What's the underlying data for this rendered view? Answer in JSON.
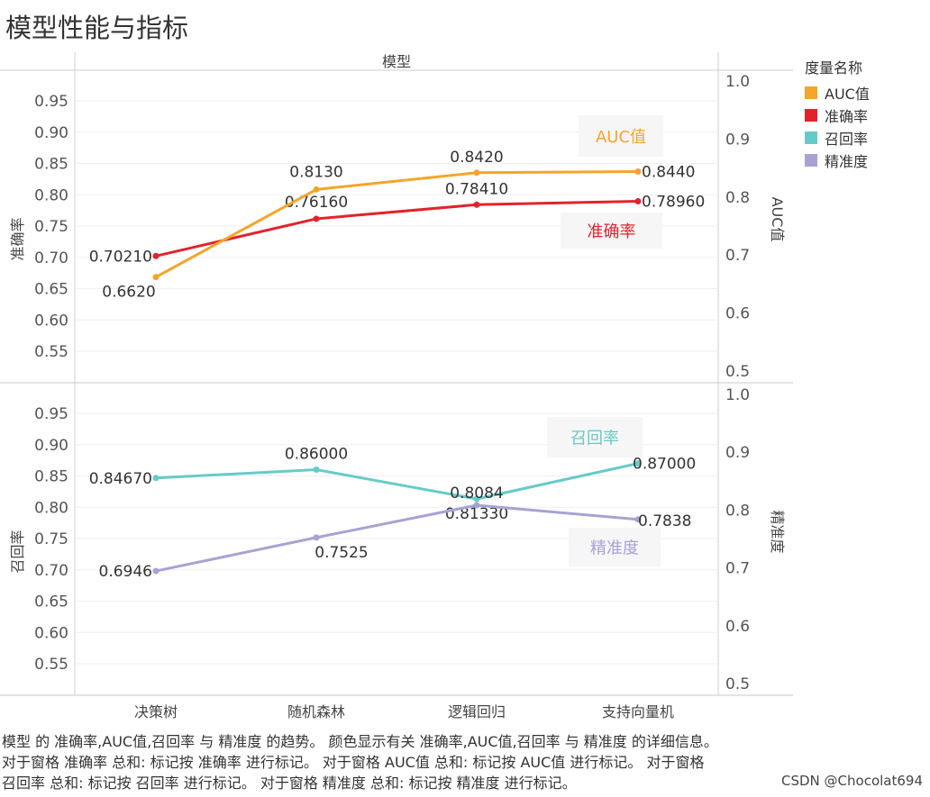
{
  "title": "模型性能与指标",
  "header_label": "模型",
  "legend": {
    "title": "度量名称",
    "items": [
      {
        "name": "AUC值",
        "color": "#f4a52a"
      },
      {
        "name": "准确率",
        "color": "#e2232c"
      },
      {
        "name": "召回率",
        "color": "#66cbc8"
      },
      {
        "name": "精准度",
        "color": "#a6a3d4"
      }
    ]
  },
  "footer": {
    "line1": "模型 的 准确率,AUC值,召回率 与 精准度 的趋势。 颜色显示有关 准确率,AUC值,召回率 与 精准度 的详细信息。",
    "line2": "对于窗格 准确率 总和: 标记按 准确率 进行标记。 对于窗格 AUC值 总和: 标记按 AUC值 进行标记。 对于窗格",
    "line3": "召回率 总和: 标记按 召回率 进行标记。 对于窗格 精准度 总和: 标记按 精准度 进行标记。"
  },
  "watermark": "CSDN @Chocolat694",
  "chart_data": {
    "type": "line",
    "categories": [
      "决策树",
      "随机森林",
      "逻辑回归",
      "支持向量机"
    ],
    "panels": [
      {
        "left_axis": {
          "label": "准确率",
          "ticks": [
            "0.55",
            "0.60",
            "0.65",
            "0.70",
            "0.75",
            "0.80",
            "0.85",
            "0.90",
            "0.95"
          ]
        },
        "right_axis": {
          "label": "AUC值",
          "ticks": [
            "0.5",
            "0.6",
            "0.7",
            "0.8",
            "0.9",
            "1.0"
          ]
        },
        "series": [
          {
            "name": "准确率",
            "axis": "left",
            "color": "#e2232c",
            "values": [
              0.7021,
              0.7616,
              0.7841,
              0.7896
            ],
            "labels": [
              "0.70210",
              "0.76160",
              "0.78410",
              "0.78960"
            ],
            "end_label": "准确率"
          },
          {
            "name": "AUC值",
            "axis": "right",
            "color": "#f4a52a",
            "values": [
              0.662,
              0.813,
              0.842,
              0.844
            ],
            "labels": [
              "0.6620",
              "0.8130",
              "0.8420",
              "0.8440"
            ],
            "end_label": "AUC值"
          }
        ]
      },
      {
        "left_axis": {
          "label": "召回率",
          "ticks": [
            "0.55",
            "0.60",
            "0.65",
            "0.70",
            "0.75",
            "0.80",
            "0.85",
            "0.90",
            "0.95"
          ]
        },
        "right_axis": {
          "label": "精准度",
          "ticks": [
            "0.5",
            "0.6",
            "0.7",
            "0.8",
            "0.9",
            "1.0"
          ]
        },
        "series": [
          {
            "name": "召回率",
            "axis": "left",
            "color": "#66cbc8",
            "values": [
              0.8467,
              0.86,
              0.8133,
              0.87
            ],
            "labels": [
              "0.84670",
              "0.86000",
              "0.81330",
              "0.87000"
            ],
            "end_label": "召回率"
          },
          {
            "name": "精准度",
            "axis": "right",
            "color": "#a6a3d4",
            "values": [
              0.6946,
              0.7525,
              0.8084,
              0.7838
            ],
            "labels": [
              "0.6946",
              "0.7525",
              "0.8084",
              "0.7838"
            ],
            "end_label": "精准度"
          }
        ]
      }
    ]
  }
}
